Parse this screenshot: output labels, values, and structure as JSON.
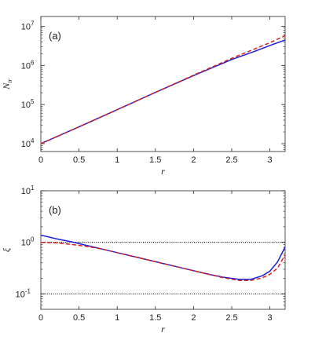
{
  "chart_data": [
    {
      "type": "line",
      "panel_label": "(a)",
      "xlabel": "r",
      "ylabel_main": "N",
      "ylabel_sub": "tr",
      "ylog": true,
      "xlim": [
        0,
        3.2
      ],
      "ylim_log10": [
        3.8,
        7.25
      ],
      "x_ticks": [
        "0",
        "0.5",
        "1",
        "1.5",
        "2",
        "2.5",
        "3"
      ],
      "y_ticks": [
        {
          "base": "10",
          "exp": "4",
          "log10": 4
        },
        {
          "base": "10",
          "exp": "5",
          "log10": 5
        },
        {
          "base": "10",
          "exp": "6",
          "log10": 6
        },
        {
          "base": "10",
          "exp": "7",
          "log10": 7
        }
      ],
      "series": [
        {
          "color": "#1f1fd6",
          "style": "solid",
          "x": [
            0,
            0.5,
            1,
            1.5,
            2,
            2.5,
            2.8,
            3.0,
            3.2
          ],
          "log10y": [
            4.0,
            4.43,
            4.87,
            5.31,
            5.74,
            6.15,
            6.36,
            6.51,
            6.65
          ]
        },
        {
          "color": "#d62020",
          "style": "dashed",
          "x": [
            0,
            0.5,
            1,
            1.5,
            2,
            2.5,
            2.8,
            3.0,
            3.2
          ],
          "log10y": [
            4.0,
            4.43,
            4.87,
            5.31,
            5.75,
            6.18,
            6.42,
            6.58,
            6.76
          ]
        }
      ]
    },
    {
      "type": "line",
      "panel_label": "(b)",
      "xlabel": "r",
      "ylabel_main": "ξ",
      "ylog": true,
      "xlim": [
        0,
        3.2
      ],
      "ylim_log10": [
        -1.3,
        1.0
      ],
      "x_ticks": [
        "0",
        "0.5",
        "1",
        "1.5",
        "2",
        "2.5",
        "3"
      ],
      "y_ticks": [
        {
          "base": "10",
          "exp": "-1",
          "log10": -1
        },
        {
          "base": "10",
          "exp": "0",
          "log10": 0
        },
        {
          "base": "10",
          "exp": "1",
          "log10": 1
        }
      ],
      "reference_lines_log10": [
        0,
        -1
      ],
      "series": [
        {
          "color": "#1f1fd6",
          "style": "solid",
          "x": [
            0,
            0.2,
            0.4,
            0.6,
            0.8,
            1.0,
            1.2,
            1.4,
            1.6,
            1.8,
            2.0,
            2.2,
            2.4,
            2.6,
            2.75,
            2.9,
            3.0,
            3.1,
            3.2
          ],
          "log10y": [
            0.14,
            0.07,
            0.01,
            -0.06,
            -0.13,
            -0.2,
            -0.27,
            -0.34,
            -0.41,
            -0.48,
            -0.55,
            -0.62,
            -0.68,
            -0.72,
            -0.72,
            -0.65,
            -0.56,
            -0.38,
            -0.09
          ]
        },
        {
          "color": "#d62020",
          "style": "dashed",
          "x": [
            0,
            0.2,
            0.4,
            0.6,
            0.8,
            1.0,
            1.2,
            1.4,
            1.6,
            1.8,
            2.0,
            2.2,
            2.4,
            2.6,
            2.75,
            2.9,
            3.0,
            3.1,
            3.2
          ],
          "log10y": [
            0.0,
            -0.01,
            -0.04,
            -0.08,
            -0.13,
            -0.2,
            -0.27,
            -0.34,
            -0.41,
            -0.48,
            -0.55,
            -0.62,
            -0.69,
            -0.74,
            -0.74,
            -0.69,
            -0.62,
            -0.5,
            -0.24
          ]
        }
      ]
    }
  ]
}
